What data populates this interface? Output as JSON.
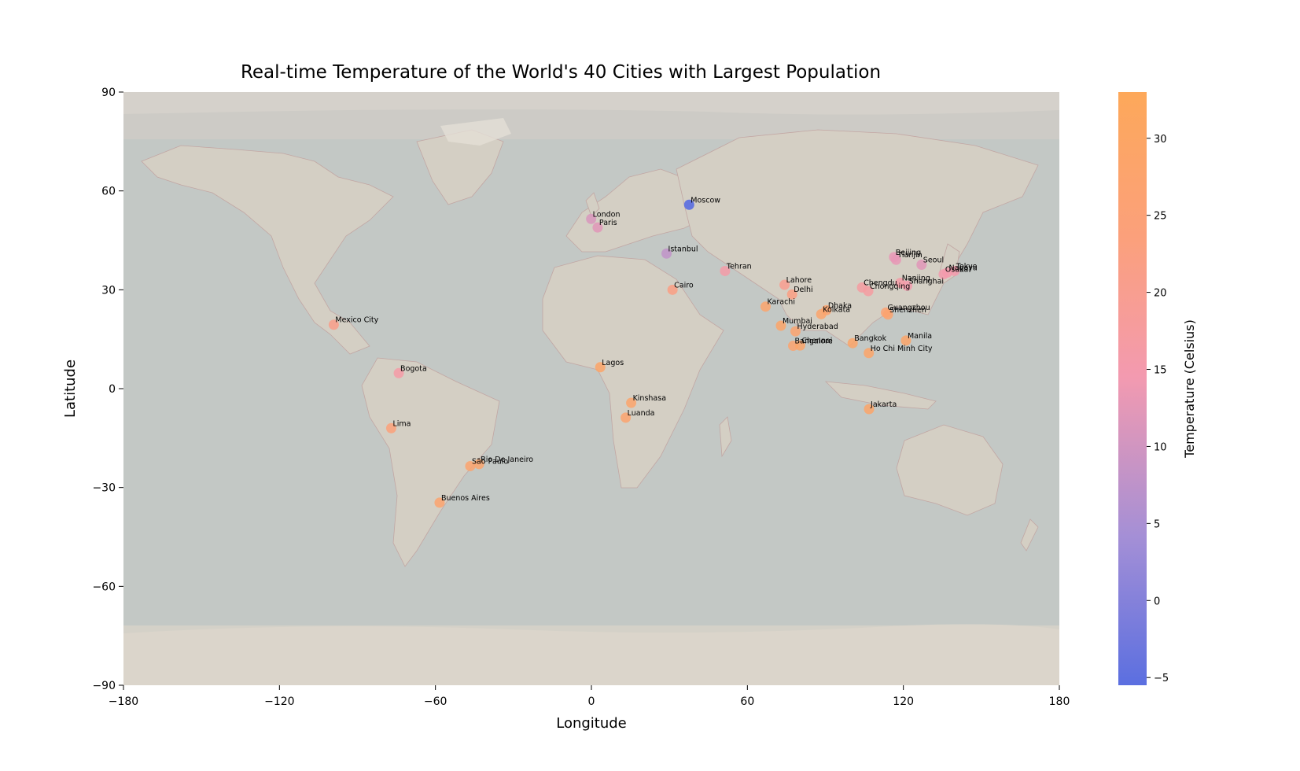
{
  "chart_data": {
    "type": "scatter",
    "title": "Real-time Temperature of the World's 40 Cities with Largest Population",
    "xlabel": "Longitude",
    "ylabel": "Latitude",
    "xlim": [
      -180,
      180
    ],
    "ylim": [
      -90,
      90
    ],
    "xticks": [
      -180,
      -120,
      -60,
      0,
      60,
      120,
      180
    ],
    "xtick_labels": [
      "−180",
      "−120",
      "−60",
      "0",
      "60",
      "120",
      "180"
    ],
    "yticks": [
      90,
      60,
      30,
      0,
      -30,
      -60,
      -90
    ],
    "ytick_labels": [
      "90",
      "60",
      "30",
      "0",
      "−30",
      "−60",
      "−90"
    ],
    "grid": false,
    "background": "world map",
    "colorbar": {
      "label": "Temperature (Celsius)",
      "range": [
        -5.5,
        33
      ],
      "ticks": [
        30,
        25,
        20,
        15,
        10,
        5,
        0,
        -5
      ],
      "tick_labels": [
        "30",
        "25",
        "20",
        "15",
        "10",
        "5",
        "0",
        "−5"
      ],
      "colors": [
        "#5b6fe0",
        "#a48fd6",
        "#f39ab0",
        "#fba07c",
        "#fda85a"
      ]
    },
    "points": [
      {
        "name": "Tokyo",
        "lon": 139.7,
        "lat": 35.7,
        "temp": 15
      },
      {
        "name": "Delhi",
        "lon": 77.2,
        "lat": 28.6,
        "temp": 22
      },
      {
        "name": "Shanghai",
        "lon": 121.5,
        "lat": 31.2,
        "temp": 15
      },
      {
        "name": "São Paulo",
        "lon": -46.6,
        "lat": -23.5,
        "temp": 27
      },
      {
        "name": "Mexico City",
        "lon": -99.1,
        "lat": 19.4,
        "temp": 21
      },
      {
        "name": "Cairo",
        "lon": 31.2,
        "lat": 30.0,
        "temp": 22
      },
      {
        "name": "Mumbai",
        "lon": 72.9,
        "lat": 19.1,
        "temp": 29
      },
      {
        "name": "Beijing",
        "lon": 116.4,
        "lat": 39.9,
        "temp": 13
      },
      {
        "name": "Dhaka",
        "lon": 90.4,
        "lat": 23.8,
        "temp": 27
      },
      {
        "name": "Osaka",
        "lon": 135.5,
        "lat": 34.7,
        "temp": 15
      },
      {
        "name": "Karachi",
        "lon": 67.0,
        "lat": 24.9,
        "temp": 28
      },
      {
        "name": "Chongqing",
        "lon": 106.5,
        "lat": 29.6,
        "temp": 17
      },
      {
        "name": "Istanbul",
        "lon": 28.9,
        "lat": 41.0,
        "temp": 8
      },
      {
        "name": "Buenos Aires",
        "lon": -58.4,
        "lat": -34.6,
        "temp": 27
      },
      {
        "name": "Kolkata",
        "lon": 88.4,
        "lat": 22.6,
        "temp": 28
      },
      {
        "name": "Kinshasa",
        "lon": 15.3,
        "lat": -4.3,
        "temp": 28
      },
      {
        "name": "Lagos",
        "lon": 3.4,
        "lat": 6.5,
        "temp": 29
      },
      {
        "name": "Manila",
        "lon": 121.0,
        "lat": 14.6,
        "temp": 29
      },
      {
        "name": "Tianjin",
        "lon": 117.2,
        "lat": 39.1,
        "temp": 13
      },
      {
        "name": "Rio De Janeiro",
        "lon": -43.2,
        "lat": -22.9,
        "temp": 28
      },
      {
        "name": "Guangzhou",
        "lon": 113.3,
        "lat": 23.1,
        "temp": 26
      },
      {
        "name": "Lahore",
        "lon": 74.3,
        "lat": 31.5,
        "temp": 20
      },
      {
        "name": "Moscow",
        "lon": 37.6,
        "lat": 55.8,
        "temp": -5
      },
      {
        "name": "Shenzhen",
        "lon": 114.1,
        "lat": 22.5,
        "temp": 27
      },
      {
        "name": "Bangalore",
        "lon": 77.6,
        "lat": 13.0,
        "temp": 27
      },
      {
        "name": "Paris",
        "lon": 2.4,
        "lat": 48.9,
        "temp": 12
      },
      {
        "name": "Bogota",
        "lon": -74.1,
        "lat": 4.7,
        "temp": 16
      },
      {
        "name": "Jakarta",
        "lon": 106.8,
        "lat": -6.2,
        "temp": 29
      },
      {
        "name": "Chennai",
        "lon": 80.3,
        "lat": 13.1,
        "temp": 29
      },
      {
        "name": "Lima",
        "lon": -77.0,
        "lat": -12.0,
        "temp": 24
      },
      {
        "name": "Bangkok",
        "lon": 100.5,
        "lat": 13.8,
        "temp": 29
      },
      {
        "name": "Seoul",
        "lon": 127.0,
        "lat": 37.6,
        "temp": 12
      },
      {
        "name": "Nagoya",
        "lon": 136.9,
        "lat": 35.2,
        "temp": 15
      },
      {
        "name": "Hyderabad",
        "lon": 78.5,
        "lat": 17.4,
        "temp": 27
      },
      {
        "name": "London",
        "lon": -0.1,
        "lat": 51.5,
        "temp": 11
      },
      {
        "name": "Tehran",
        "lon": 51.4,
        "lat": 35.7,
        "temp": 16
      },
      {
        "name": "Chengdu",
        "lon": 104.1,
        "lat": 30.7,
        "temp": 17
      },
      {
        "name": "Nanjing",
        "lon": 118.8,
        "lat": 32.1,
        "temp": 16
      },
      {
        "name": "Ho Chi Minh City",
        "lon": 106.7,
        "lat": 10.8,
        "temp": 29
      },
      {
        "name": "Luanda",
        "lon": 13.2,
        "lat": -8.8,
        "temp": 27
      }
    ]
  }
}
